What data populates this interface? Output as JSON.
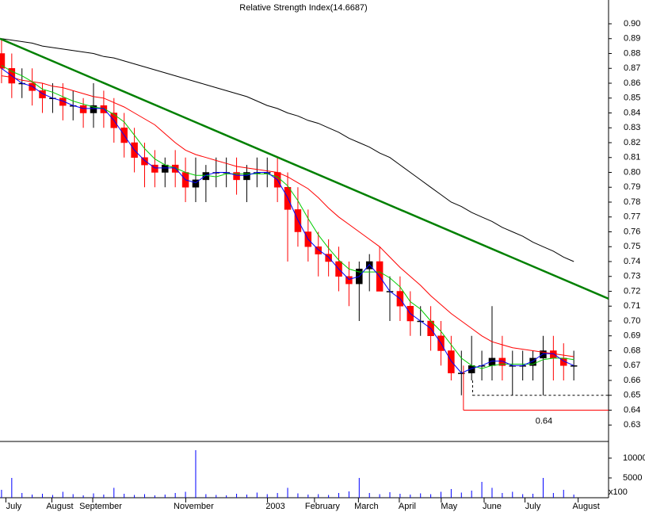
{
  "chart_data": {
    "type": "candlestick",
    "title": "Relative Strength Index(14.6687)",
    "up_color": "#000000",
    "down_color": "#ff0000",
    "xlim": [
      -0.15,
      59.4
    ],
    "xticks": [
      {
        "value": 1.2,
        "label": "July"
      },
      {
        "value": 5.7,
        "label": "August"
      },
      {
        "value": 9.7,
        "label": "September"
      },
      {
        "value": 18.8,
        "label": "November"
      },
      {
        "value": 26.8,
        "label": "2003"
      },
      {
        "value": 31.4,
        "label": "February"
      },
      {
        "value": 35.7,
        "label": "March"
      },
      {
        "value": 39.7,
        "label": "April"
      },
      {
        "value": 43.8,
        "label": "May"
      },
      {
        "value": 48,
        "label": "June"
      },
      {
        "value": 52,
        "label": "July"
      },
      {
        "value": 57.2,
        "label": "August"
      }
    ],
    "ylim": [
      0.62,
      0.916
    ],
    "yticks": [
      0.63,
      0.64,
      0.65,
      0.66,
      0.67,
      0.68,
      0.69,
      {
        "value": 0.7,
        "label": "0.70"
      },
      0.71,
      0.72,
      0.73,
      0.74,
      0.75,
      0.76,
      0.77,
      0.78,
      0.79,
      {
        "value": 0.8,
        "label": "0.80"
      },
      0.81,
      0.82,
      0.83,
      0.84,
      0.85,
      0.86,
      0.87,
      0.88,
      0.89,
      {
        "value": 0.9,
        "label": "0.90"
      }
    ],
    "open": [
      0.88,
      0.87,
      0.86,
      0.86,
      0.855,
      0.85,
      0.85,
      0.845,
      0.845,
      0.84,
      0.845,
      0.84,
      0.83,
      0.82,
      0.81,
      0.805,
      0.8,
      0.805,
      0.8,
      0.79,
      0.795,
      0.8,
      0.8,
      0.8,
      0.795,
      0.8,
      0.8,
      0.8,
      0.79,
      0.775,
      0.76,
      0.75,
      0.745,
      0.74,
      0.73,
      0.725,
      0.735,
      0.74,
      0.72,
      0.72,
      0.71,
      0.7,
      0.7,
      0.69,
      0.68,
      0.665,
      0.665,
      0.67,
      0.67,
      0.675,
      0.67,
      0.67,
      0.67,
      0.675,
      0.68,
      0.675,
      0.67
    ],
    "high": [
      0.89,
      0.88,
      0.87,
      0.87,
      0.86,
      0.86,
      0.86,
      0.855,
      0.85,
      0.86,
      0.855,
      0.85,
      0.84,
      0.83,
      0.82,
      0.815,
      0.81,
      0.815,
      0.81,
      0.81,
      0.805,
      0.81,
      0.81,
      0.81,
      0.805,
      0.81,
      0.81,
      0.81,
      0.8,
      0.79,
      0.775,
      0.76,
      0.755,
      0.75,
      0.74,
      0.74,
      0.745,
      0.75,
      0.73,
      0.73,
      0.72,
      0.71,
      0.71,
      0.7,
      0.69,
      0.68,
      0.69,
      0.68,
      0.71,
      0.69,
      0.68,
      0.68,
      0.68,
      0.69,
      0.69,
      0.685,
      0.68
    ],
    "low": [
      0.86,
      0.85,
      0.85,
      0.845,
      0.84,
      0.84,
      0.835,
      0.835,
      0.83,
      0.83,
      0.83,
      0.82,
      0.81,
      0.8,
      0.79,
      0.79,
      0.79,
      0.79,
      0.78,
      0.78,
      0.78,
      0.79,
      0.79,
      0.785,
      0.78,
      0.79,
      0.79,
      0.78,
      0.74,
      0.75,
      0.74,
      0.73,
      0.73,
      0.72,
      0.71,
      0.7,
      0.72,
      0.72,
      0.7,
      0.7,
      0.69,
      0.69,
      0.68,
      0.67,
      0.66,
      0.65,
      0.66,
      0.66,
      0.66,
      0.66,
      0.65,
      0.66,
      0.66,
      0.65,
      0.66,
      0.66,
      0.66
    ],
    "close": [
      0.87,
      0.86,
      0.86,
      0.855,
      0.85,
      0.85,
      0.845,
      0.845,
      0.84,
      0.845,
      0.84,
      0.83,
      0.82,
      0.81,
      0.805,
      0.8,
      0.805,
      0.8,
      0.79,
      0.795,
      0.8,
      0.8,
      0.8,
      0.795,
      0.8,
      0.8,
      0.8,
      0.79,
      0.775,
      0.76,
      0.75,
      0.745,
      0.74,
      0.73,
      0.725,
      0.735,
      0.74,
      0.72,
      0.72,
      0.71,
      0.7,
      0.7,
      0.69,
      0.68,
      0.665,
      0.665,
      0.67,
      0.67,
      0.675,
      0.67,
      0.67,
      0.67,
      0.675,
      0.68,
      0.675,
      0.67,
      0.67
    ],
    "series": [
      {
        "color": "#000000",
        "values": [
          0.89,
          0.889,
          0.888,
          0.887,
          0.885,
          0.884,
          0.883,
          0.882,
          0.881,
          0.88,
          0.878,
          0.877,
          0.875,
          0.873,
          0.871,
          0.869,
          0.867,
          0.865,
          0.863,
          0.861,
          0.859,
          0.857,
          0.855,
          0.853,
          0.851,
          0.848,
          0.845,
          0.843,
          0.84,
          0.838,
          0.835,
          0.833,
          0.83,
          0.827,
          0.823,
          0.82,
          0.817,
          0.813,
          0.81,
          0.805,
          0.8,
          0.795,
          0.79,
          0.785,
          0.78,
          0.777,
          0.773,
          0.77,
          0.767,
          0.763,
          0.76,
          0.757,
          0.753,
          0.75,
          0.747,
          0.743,
          0.74
        ]
      },
      {
        "color": "#ff0000",
        "values": [
          0.865,
          0.864,
          0.862,
          0.861,
          0.86,
          0.858,
          0.857,
          0.855,
          0.853,
          0.851,
          0.85,
          0.847,
          0.844,
          0.84,
          0.836,
          0.832,
          0.826,
          0.82,
          0.815,
          0.812,
          0.81,
          0.808,
          0.806,
          0.804,
          0.803,
          0.802,
          0.801,
          0.8,
          0.797,
          0.793,
          0.789,
          0.783,
          0.776,
          0.77,
          0.765,
          0.76,
          0.755,
          0.75,
          0.743,
          0.736,
          0.73,
          0.724,
          0.717,
          0.711,
          0.705,
          0.7,
          0.695,
          0.69,
          0.686,
          0.684,
          0.682,
          0.681,
          0.68,
          0.679,
          0.678,
          0.677,
          0.676
        ]
      },
      {
        "color": "#00cc00",
        "values": [
          0.872,
          0.868,
          0.865,
          0.861,
          0.856,
          0.854,
          0.851,
          0.848,
          0.846,
          0.844,
          0.843,
          0.839,
          0.834,
          0.825,
          0.816,
          0.809,
          0.805,
          0.803,
          0.8,
          0.798,
          0.798,
          0.797,
          0.799,
          0.799,
          0.799,
          0.799,
          0.799,
          0.797,
          0.791,
          0.781,
          0.769,
          0.758,
          0.749,
          0.741,
          0.735,
          0.733,
          0.733,
          0.733,
          0.729,
          0.723,
          0.713,
          0.708,
          0.7,
          0.693,
          0.684,
          0.675,
          0.67,
          0.668,
          0.67,
          0.671,
          0.671,
          0.671,
          0.671,
          0.674,
          0.675,
          0.675,
          0.674
        ]
      },
      {
        "color": "#0000ff",
        "values": [
          0.87,
          0.865,
          0.86,
          0.858,
          0.853,
          0.85,
          0.848,
          0.845,
          0.843,
          0.843,
          0.843,
          0.835,
          0.825,
          0.815,
          0.808,
          0.803,
          0.803,
          0.803,
          0.795,
          0.793,
          0.798,
          0.8,
          0.8,
          0.798,
          0.798,
          0.8,
          0.8,
          0.795,
          0.783,
          0.768,
          0.755,
          0.748,
          0.743,
          0.735,
          0.728,
          0.73,
          0.738,
          0.73,
          0.72,
          0.715,
          0.705,
          0.7,
          0.695,
          0.685,
          0.673,
          0.665,
          0.668,
          0.67,
          0.673,
          0.673,
          0.67,
          0.67,
          0.673,
          0.678,
          0.678,
          0.673,
          0.67
        ]
      }
    ],
    "trendline": {
      "color": "#008000",
      "x": [
        -0.15,
        59.4
      ],
      "y": [
        0.89,
        0.715
      ]
    },
    "levels": [
      {
        "value": 0.65,
        "from": 46.1,
        "top": 0.66,
        "color": "#000000",
        "dashed": true
      },
      {
        "value": 0.64,
        "from": 45.2,
        "top": 0.67,
        "color": "#ff0000",
        "dashed": false,
        "label_color": "#0000ff"
      }
    ],
    "volume": {
      "color": "#0000ff",
      "unit": "x100",
      "ylim": [
        0,
        13600
      ],
      "yticks": [
        5000,
        10000
      ],
      "values": [
        2000,
        5000,
        1200,
        800,
        1000,
        700,
        1500,
        900,
        600,
        1100,
        800,
        2500,
        1000,
        700,
        900,
        600,
        800,
        1200,
        1500,
        12000,
        900,
        700,
        600,
        1000,
        800,
        1300,
        900,
        1200,
        2500,
        1100,
        800,
        900,
        700,
        1200,
        1600,
        5000,
        1200,
        900,
        1400,
        1000,
        800,
        1100,
        900,
        1500,
        2200,
        1300,
        1800,
        4000,
        2500,
        1200,
        1500,
        900,
        1000,
        5000,
        1200,
        2000,
        800
      ]
    }
  }
}
